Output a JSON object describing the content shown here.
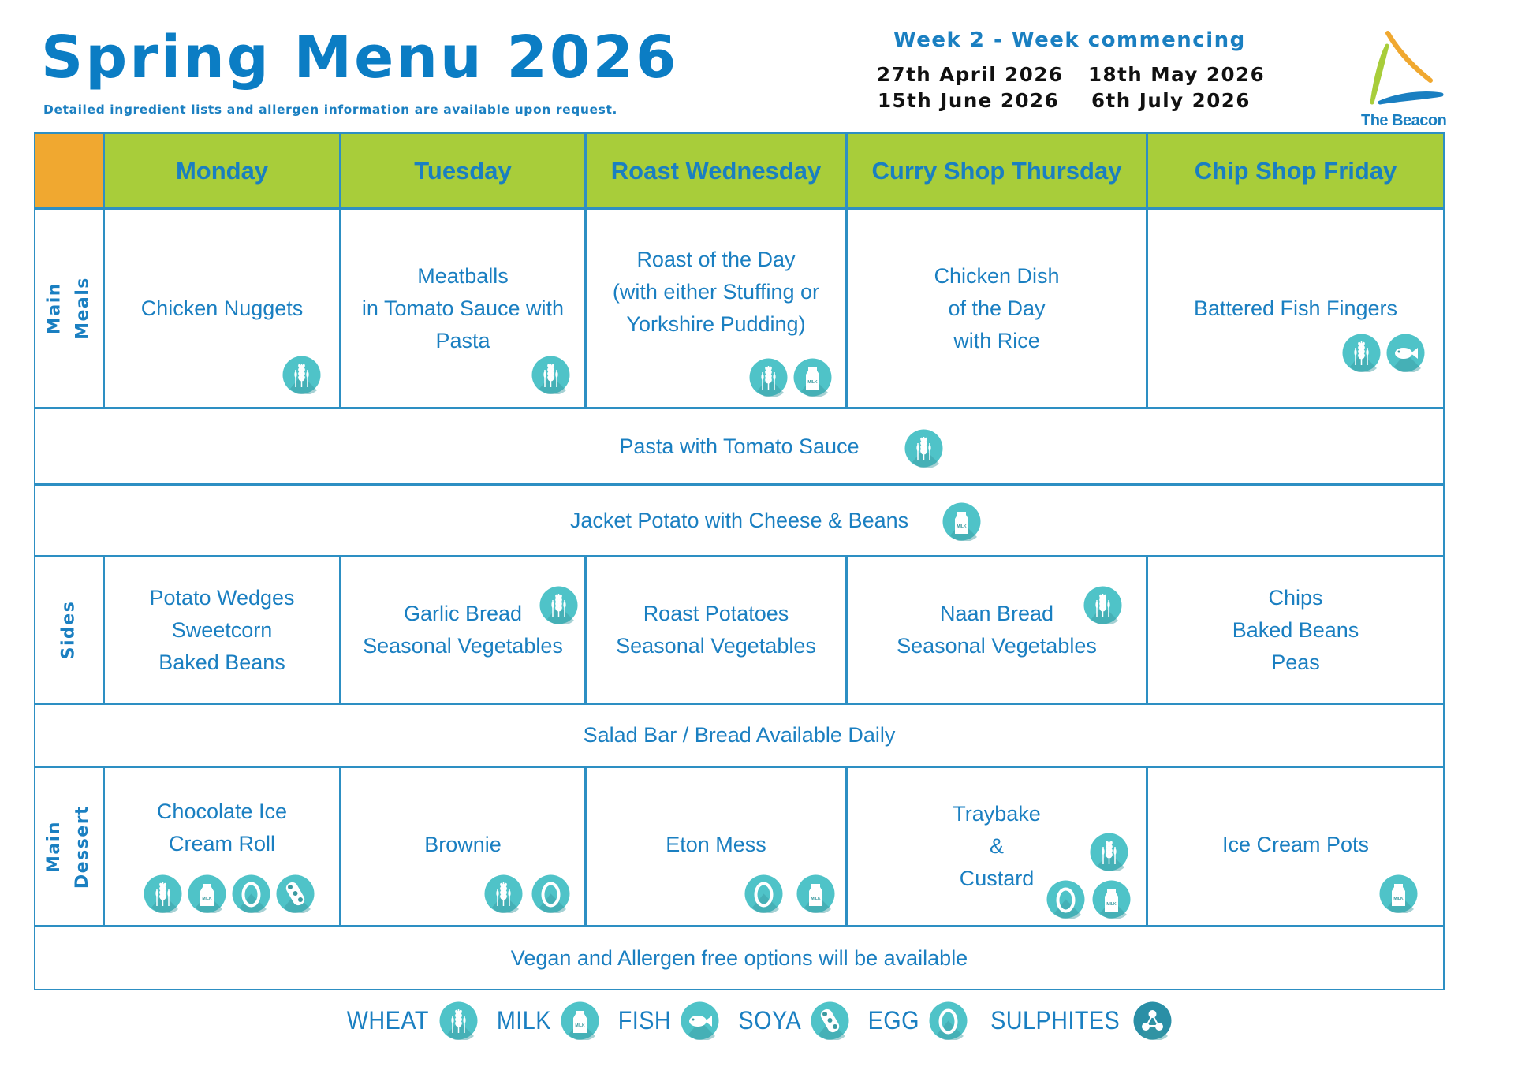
{
  "header": {
    "title": "Spring Menu 2026",
    "subtitle": "Detailed ingredient lists and allergen information are available upon request.",
    "week_label": "Week 2 - Week commencing",
    "dates": [
      "27th April 2026",
      "18th May 2026",
      "15th June 2026",
      "6th July 2026"
    ],
    "logo_text": "The Beacon"
  },
  "colors": {
    "text_blue": "#1a7fc1",
    "header_green": "#a8cd3a",
    "corner_orange": "#f0a830",
    "grid": "#2d8fc3",
    "icon_teal": "#4fc3c8"
  },
  "days": [
    "Monday",
    "Tuesday",
    "Roast Wednesday",
    "Curry Shop Thursday",
    "Chip Shop Friday"
  ],
  "row_labels": {
    "main_meals": "Main Meals",
    "sides": "Sides",
    "dessert": "Main\nDessert"
  },
  "main_meals": [
    {
      "text": "Chicken Nuggets",
      "allergens": [
        "wheat"
      ]
    },
    {
      "text": "Meatballs\nin Tomato Sauce with\nPasta",
      "allergens": [
        "wheat"
      ]
    },
    {
      "text": "Roast of the Day\n(with either Stuffing or\nYorkshire Pudding)",
      "allergens": [
        "wheat",
        "milk"
      ]
    },
    {
      "text": "Chicken Dish\nof the Day\nwith Rice",
      "allergens": []
    },
    {
      "text": "Battered Fish Fingers",
      "allergens": [
        "wheat",
        "fish"
      ]
    }
  ],
  "daily_options": [
    {
      "text": "Pasta with Tomato Sauce",
      "allergens": [
        "wheat"
      ]
    },
    {
      "text": "Jacket Potato with Cheese & Beans",
      "allergens": [
        "milk"
      ]
    }
  ],
  "sides": [
    {
      "text": "Potato Wedges\nSweetcorn\nBaked Beans",
      "allergens": []
    },
    {
      "text": "Garlic Bread\nSeasonal Vegetables",
      "allergens": [
        "wheat"
      ]
    },
    {
      "text": "Roast Potatoes\nSeasonal Vegetables",
      "allergens": []
    },
    {
      "text": "Naan Bread\nSeasonal Vegetables",
      "allergens": [
        "wheat"
      ]
    },
    {
      "text": "Chips\nBaked Beans\nPeas",
      "allergens": []
    }
  ],
  "salad_bar": "Salad Bar /  Bread Available Daily",
  "desserts": [
    {
      "text": "Chocolate Ice\nCream Roll",
      "allergens": [
        "wheat",
        "milk",
        "egg",
        "soya"
      ]
    },
    {
      "text": "Brownie",
      "allergens": [
        "wheat",
        "egg"
      ]
    },
    {
      "text": "Eton Mess",
      "allergens": [
        "egg",
        "milk"
      ]
    },
    {
      "text": "Traybake\n&\nCustard",
      "allergens": [
        "wheat",
        "egg",
        "milk"
      ]
    },
    {
      "text": "Ice Cream Pots",
      "allergens": [
        "milk"
      ]
    }
  ],
  "footer_note": "Vegan and Allergen free options will be available",
  "legend": [
    {
      "label": "WHEAT",
      "icon": "wheat"
    },
    {
      "label": "MILK",
      "icon": "milk"
    },
    {
      "label": "FISH",
      "icon": "fish"
    },
    {
      "label": "SOYA",
      "icon": "soya"
    },
    {
      "label": "EGG",
      "icon": "egg"
    },
    {
      "label": "SULPHITES",
      "icon": "sulphites"
    }
  ]
}
